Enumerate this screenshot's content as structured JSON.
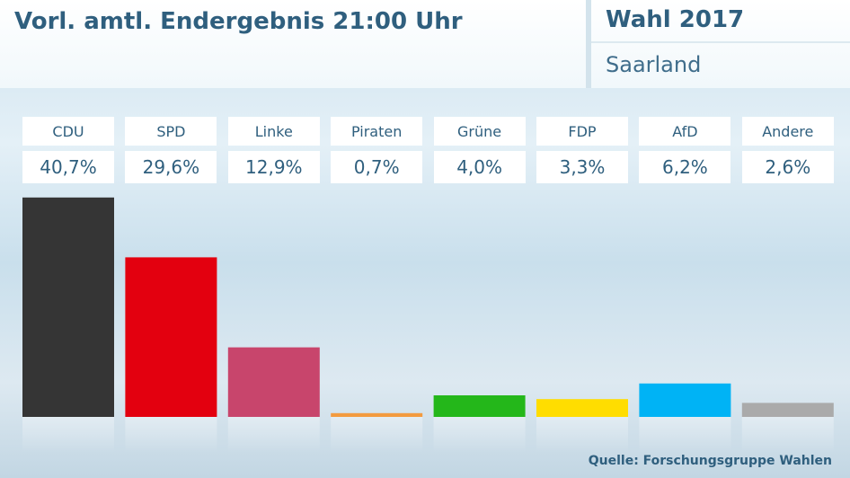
{
  "header": {
    "title": "Vorl. amtl. Endergebnis 21:00 Uhr",
    "election": "Wahl 2017",
    "region": "Saarland"
  },
  "source": "Quelle: Forschungsgruppe Wahlen",
  "chart_data": {
    "type": "bar",
    "title": "Vorl. amtl. Endergebnis 21:00 Uhr",
    "xlabel": "",
    "ylabel": "",
    "ylim": [
      0,
      41
    ],
    "grid": false,
    "legend": "none",
    "categories": [
      "CDU",
      "SPD",
      "Linke",
      "Piraten",
      "Grüne",
      "FDP",
      "AfD",
      "Andere"
    ],
    "values": [
      40.7,
      29.6,
      12.9,
      0.7,
      4.0,
      3.3,
      6.2,
      2.6
    ],
    "value_labels": [
      "40,7%",
      "29,6%",
      "12,9%",
      "0,7%",
      "4,0%",
      "3,3%",
      "6,2%",
      "2,6%"
    ],
    "colors": [
      "#353535",
      "#e3000f",
      "#c8456c",
      "#f39b3f",
      "#24b71a",
      "#ffdd00",
      "#00b3f5",
      "#aaaaaa"
    ]
  }
}
